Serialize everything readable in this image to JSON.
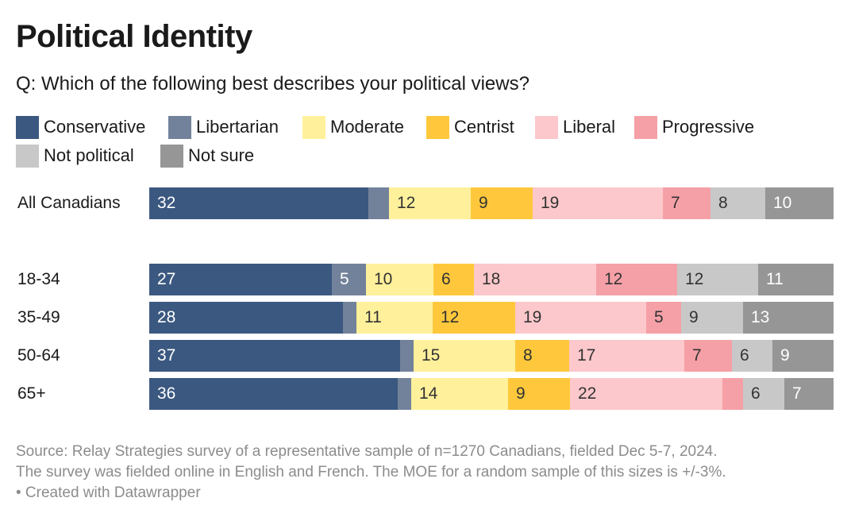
{
  "title": "Political Identity",
  "subtitle": "Q: Which of the following best describes your political views?",
  "footer": {
    "line1": "Source: Relay Strategies survey of a representative sample of n=1270 Canadians, fielded Dec 5-7, 2024.",
    "line2": "The survey was fielded online in English and French. The MOE for a random sample of this sizes is +/-3%.",
    "line3": "• Created with Datawrapper"
  },
  "chart_data": {
    "type": "bar",
    "orientation": "horizontal",
    "stacked": true,
    "percent": true,
    "title": "Political Identity",
    "subtitle": "Q: Which of the following best describes your political views?",
    "legend_position": "top",
    "categories": [
      "All Canadians",
      "18-34",
      "35-49",
      "50-64",
      "65+"
    ],
    "series": [
      {
        "name": "Conservative",
        "color": "#3b5880",
        "text": "dark",
        "values": [
          32,
          27,
          28,
          37,
          36
        ]
      },
      {
        "name": "Libertarian",
        "color": "#73829b",
        "text": "dark",
        "values": [
          3,
          5,
          2,
          2,
          2
        ]
      },
      {
        "name": "Moderate",
        "color": "#fff09b",
        "text": "light",
        "values": [
          12,
          10,
          11,
          15,
          14
        ]
      },
      {
        "name": "Centrist",
        "color": "#ffc83c",
        "text": "light",
        "values": [
          9,
          6,
          12,
          8,
          9
        ]
      },
      {
        "name": "Liberal",
        "color": "#fcc8cb",
        "text": "light",
        "values": [
          19,
          18,
          19,
          17,
          22
        ]
      },
      {
        "name": "Progressive",
        "color": "#f5a0a7",
        "text": "light",
        "values": [
          7,
          12,
          5,
          7,
          3
        ]
      },
      {
        "name": "Not political",
        "color": "#c8c8c8",
        "text": "light",
        "values": [
          8,
          12,
          9,
          6,
          6
        ]
      },
      {
        "name": "Not sure",
        "color": "#969696",
        "text": "dark",
        "values": [
          10,
          11,
          13,
          9,
          7
        ]
      }
    ],
    "labels_shown": [
      [
        "32",
        "",
        "12",
        "9",
        "19",
        "7",
        "8",
        "10"
      ],
      [
        "27",
        "5",
        "10",
        "6",
        "18",
        "12",
        "12",
        "11"
      ],
      [
        "28",
        "",
        "11",
        "12",
        "19",
        "5",
        "9",
        "13"
      ],
      [
        "37",
        "",
        "15",
        "8",
        "17",
        "7",
        "6",
        "9"
      ],
      [
        "36",
        "",
        "14",
        "9",
        "22",
        "",
        "6",
        "7"
      ]
    ]
  }
}
